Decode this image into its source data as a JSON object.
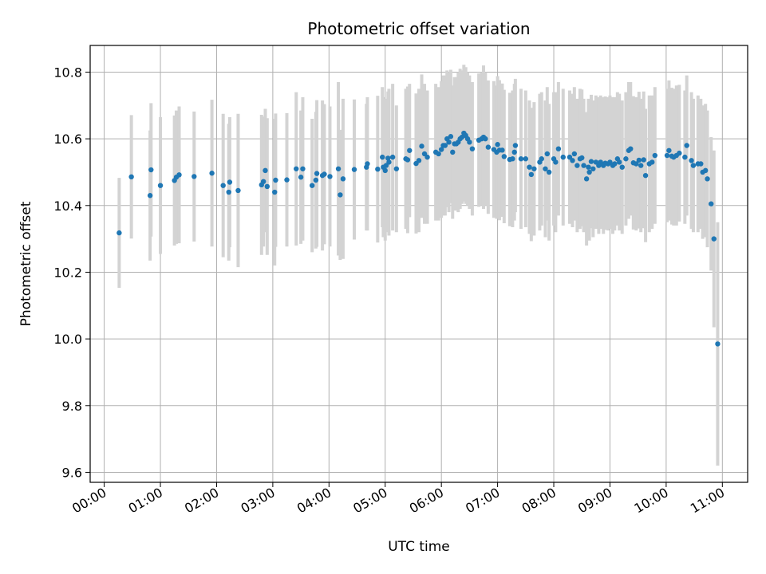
{
  "chart_data": {
    "type": "scatter",
    "title": "Photometric offset variation",
    "xlabel": "UTC time",
    "ylabel": "Photometric offset",
    "x_unit": "hours UTC",
    "xlim": [
      "-0.25",
      "11.45"
    ],
    "ylim": [
      9.57,
      10.88
    ],
    "x_ticks": [
      "00:00",
      "01:00",
      "02:00",
      "03:00",
      "04:00",
      "05:00",
      "06:00",
      "07:00",
      "08:00",
      "09:00",
      "10:00",
      "11:00"
    ],
    "y_ticks": [
      "9.6",
      "9.8",
      "10.0",
      "10.2",
      "10.4",
      "10.6",
      "10.8"
    ],
    "grid": true,
    "colors": {
      "points": "#1f77b4",
      "errorbars": "#d3d3d3",
      "grid": "#b0b0b0"
    },
    "series": [
      {
        "points": [
          [
            "00:16",
            10.318,
            0.165
          ],
          [
            "00:29",
            10.486,
            0.185
          ],
          [
            "00:49",
            10.43,
            0.195
          ],
          [
            "00:50",
            10.507,
            0.2
          ],
          [
            "01:00",
            10.46,
            0.205
          ],
          [
            "01:15",
            10.475,
            0.195
          ],
          [
            "01:17",
            10.485,
            0.2
          ],
          [
            "01:20",
            10.492,
            0.205
          ],
          [
            "01:36",
            10.487,
            0.195
          ],
          [
            "01:55",
            10.497,
            0.22
          ],
          [
            "02:07",
            10.46,
            0.215
          ],
          [
            "02:13",
            10.44,
            0.205
          ],
          [
            "02:14",
            10.47,
            0.195
          ],
          [
            "02:23",
            10.445,
            0.23
          ],
          [
            "02:48",
            10.462,
            0.21
          ],
          [
            "02:50",
            10.472,
            0.195
          ],
          [
            "02:52",
            10.505,
            0.185
          ],
          [
            "02:54",
            10.457,
            0.205
          ],
          [
            "03:02",
            10.44,
            0.22
          ],
          [
            "03:03",
            10.476,
            0.2
          ],
          [
            "03:15",
            10.477,
            0.2
          ],
          [
            "03:25",
            10.51,
            0.23
          ],
          [
            "03:30",
            10.485,
            0.2
          ],
          [
            "03:32",
            10.51,
            0.215
          ],
          [
            "03:42",
            10.46,
            0.2
          ],
          [
            "03:46",
            10.476,
            0.205
          ],
          [
            "03:47",
            10.496,
            0.22
          ],
          [
            "03:53",
            10.49,
            0.225
          ],
          [
            "03:55",
            10.494,
            0.21
          ],
          [
            "04:01",
            10.487,
            0.21
          ],
          [
            "04:10",
            10.51,
            0.26
          ],
          [
            "04:12",
            10.432,
            0.195
          ],
          [
            "04:15",
            10.48,
            0.24
          ],
          [
            "04:27",
            10.508,
            0.21
          ],
          [
            "04:40",
            10.515,
            0.19
          ],
          [
            "04:41",
            10.525,
            0.2
          ],
          [
            "04:52",
            10.509,
            0.22
          ],
          [
            "04:57",
            10.545,
            0.21
          ],
          [
            "04:58",
            10.515,
            0.21
          ],
          [
            "05:00",
            10.505,
            0.21
          ],
          [
            "05:01",
            10.52,
            0.2
          ],
          [
            "05:03",
            10.542,
            0.2
          ],
          [
            "05:04",
            10.53,
            0.22
          ],
          [
            "05:08",
            10.545,
            0.22
          ],
          [
            "05:12",
            10.51,
            0.19
          ],
          [
            "05:22",
            10.54,
            0.21
          ],
          [
            "05:24",
            10.537,
            0.22
          ],
          [
            "05:26",
            10.565,
            0.2
          ],
          [
            "05:33",
            10.526,
            0.21
          ],
          [
            "05:36",
            10.535,
            0.215
          ],
          [
            "05:39",
            10.578,
            0.215
          ],
          [
            "05:42",
            10.555,
            0.21
          ],
          [
            "05:45",
            10.545,
            0.2
          ],
          [
            "05:54",
            10.56,
            0.205
          ],
          [
            "05:57",
            10.555,
            0.2
          ],
          [
            "06:00",
            10.568,
            0.205
          ],
          [
            "06:02",
            10.58,
            0.21
          ],
          [
            "06:04",
            10.58,
            0.21
          ],
          [
            "06:06",
            10.6,
            0.205
          ],
          [
            "06:08",
            10.59,
            0.21
          ],
          [
            "06:10",
            10.607,
            0.2
          ],
          [
            "06:12",
            10.56,
            0.2
          ],
          [
            "06:14",
            10.585,
            0.2
          ],
          [
            "06:16",
            10.585,
            0.2
          ],
          [
            "06:18",
            10.59,
            0.21
          ],
          [
            "06:20",
            10.6,
            0.21
          ],
          [
            "06:22",
            10.605,
            0.2
          ],
          [
            "06:24",
            10.617,
            0.205
          ],
          [
            "06:26",
            10.61,
            0.205
          ],
          [
            "06:28",
            10.6,
            0.2
          ],
          [
            "06:30",
            10.59,
            0.2
          ],
          [
            "06:33",
            10.57,
            0.2
          ],
          [
            "06:40",
            10.596,
            0.2
          ],
          [
            "06:43",
            10.6,
            0.2
          ],
          [
            "06:45",
            10.605,
            0.215
          ],
          [
            "06:47",
            10.6,
            0.2
          ],
          [
            "06:50",
            10.575,
            0.2
          ],
          [
            "06:56",
            10.568,
            0.205
          ],
          [
            "06:59",
            10.56,
            0.2
          ],
          [
            "07:00",
            10.583,
            0.205
          ],
          [
            "07:02",
            10.566,
            0.21
          ],
          [
            "07:05",
            10.566,
            0.2
          ],
          [
            "07:07",
            10.547,
            0.2
          ],
          [
            "07:13",
            10.538,
            0.2
          ],
          [
            "07:16",
            10.54,
            0.205
          ],
          [
            "07:18",
            10.56,
            0.205
          ],
          [
            "07:19",
            10.58,
            0.2
          ],
          [
            "07:25",
            10.54,
            0.21
          ],
          [
            "07:30",
            10.54,
            0.205
          ],
          [
            "07:34",
            10.515,
            0.2
          ],
          [
            "07:36",
            10.493,
            0.2
          ],
          [
            "07:39",
            10.51,
            0.2
          ],
          [
            "07:45",
            10.53,
            0.205
          ],
          [
            "07:47",
            10.54,
            0.2
          ],
          [
            "07:51",
            10.51,
            0.205
          ],
          [
            "07:53",
            10.555,
            0.2
          ],
          [
            "07:55",
            10.5,
            0.205
          ],
          [
            "08:00",
            10.54,
            0.2
          ],
          [
            "08:02",
            10.53,
            0.21
          ],
          [
            "08:05",
            10.57,
            0.2
          ],
          [
            "08:10",
            10.545,
            0.205
          ],
          [
            "08:17",
            10.545,
            0.2
          ],
          [
            "08:20",
            10.535,
            0.2
          ],
          [
            "08:22",
            10.555,
            0.2
          ],
          [
            "08:25",
            10.52,
            0.2
          ],
          [
            "08:28",
            10.54,
            0.21
          ],
          [
            "08:30",
            10.543,
            0.205
          ],
          [
            "08:32",
            10.52,
            0.2
          ],
          [
            "08:35",
            10.48,
            0.2
          ],
          [
            "08:37",
            10.515,
            0.205
          ],
          [
            "08:38",
            10.5,
            0.205
          ],
          [
            "08:40",
            10.532,
            0.2
          ],
          [
            "08:42",
            10.51,
            0.205
          ],
          [
            "08:45",
            10.53,
            0.2
          ],
          [
            "08:48",
            10.52,
            0.205
          ],
          [
            "08:50",
            10.53,
            0.2
          ],
          [
            "08:53",
            10.52,
            0.205
          ],
          [
            "08:55",
            10.527,
            0.2
          ],
          [
            "08:58",
            10.525,
            0.2
          ],
          [
            "09:00",
            10.53,
            0.2
          ],
          [
            "09:03",
            10.52,
            0.205
          ],
          [
            "09:05",
            10.525,
            0.2
          ],
          [
            "09:08",
            10.54,
            0.2
          ],
          [
            "09:10",
            10.53,
            0.205
          ],
          [
            "09:13",
            10.515,
            0.2
          ],
          [
            "09:17",
            10.54,
            0.2
          ],
          [
            "09:20",
            10.565,
            0.205
          ],
          [
            "09:22",
            10.57,
            0.2
          ],
          [
            "09:25",
            10.528,
            0.2
          ],
          [
            "09:28",
            10.525,
            0.2
          ],
          [
            "09:31",
            10.536,
            0.205
          ],
          [
            "09:33",
            10.52,
            0.2
          ],
          [
            "09:36",
            10.537,
            0.205
          ],
          [
            "09:38",
            10.49,
            0.2
          ],
          [
            "09:42",
            10.525,
            0.205
          ],
          [
            "09:45",
            10.53,
            0.2
          ],
          [
            "09:48",
            10.55,
            0.205
          ],
          [
            "10:01",
            10.55,
            0.2
          ],
          [
            "10:03",
            10.565,
            0.21
          ],
          [
            "10:06",
            10.548,
            0.205
          ],
          [
            "10:08",
            10.545,
            0.205
          ],
          [
            "10:11",
            10.55,
            0.21
          ],
          [
            "10:14",
            10.557,
            0.205
          ],
          [
            "10:20",
            10.545,
            0.2
          ],
          [
            "10:22",
            10.58,
            0.21
          ],
          [
            "10:27",
            10.535,
            0.205
          ],
          [
            "10:29",
            10.52,
            0.2
          ],
          [
            "10:34",
            10.525,
            0.205
          ],
          [
            "10:37",
            10.525,
            0.195
          ],
          [
            "10:39",
            10.5,
            0.2
          ],
          [
            "10:42",
            10.505,
            0.2
          ],
          [
            "10:44",
            10.48,
            0.205
          ],
          [
            "10:48",
            10.405,
            0.2
          ],
          [
            "10:51",
            10.3,
            0.265
          ],
          [
            "10:55",
            9.985,
            0.365
          ]
        ]
      }
    ]
  }
}
